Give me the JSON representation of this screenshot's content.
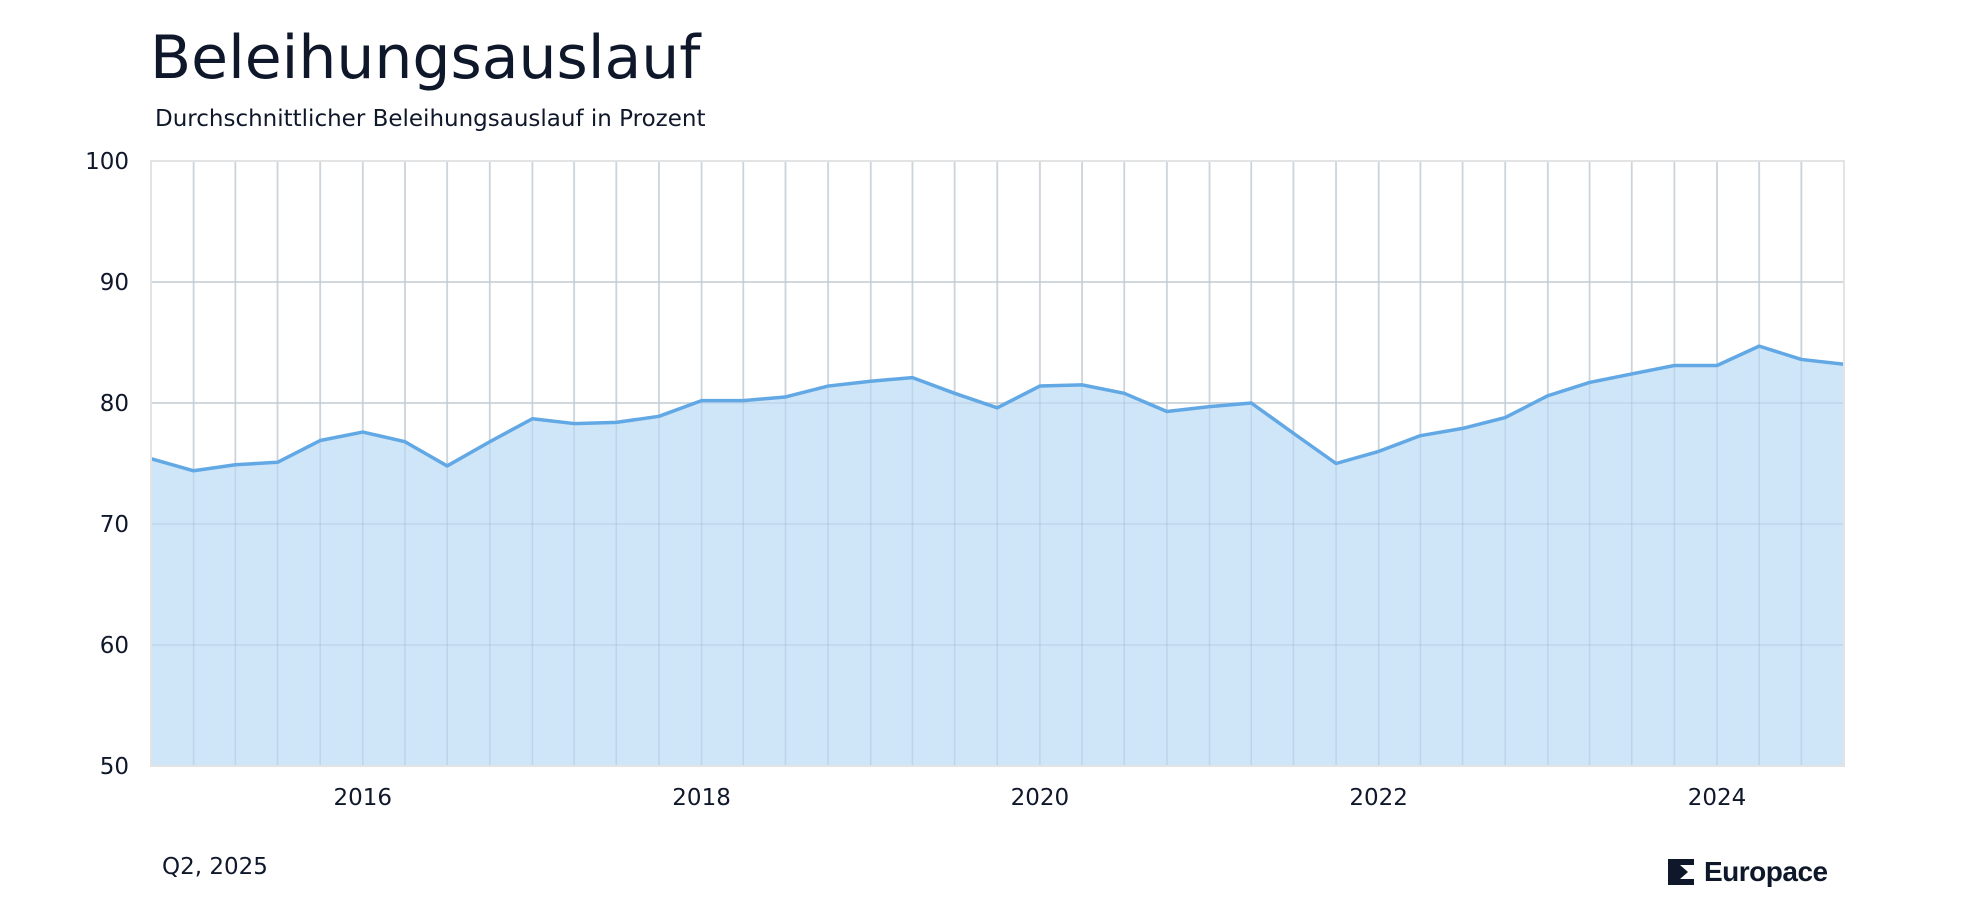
{
  "header": {
    "title": "Beleihungsauslauf",
    "subtitle": "Durchschnittlicher Beleihungsauslauf in Prozent"
  },
  "footer": {
    "date_label": "Q2, 2025",
    "brand": "Europace"
  },
  "colors": {
    "line": "#62a8e5",
    "fill": "#cfe5f8",
    "grid": "#e3e3e3",
    "text": "#0f172a"
  },
  "chart_data": {
    "type": "area",
    "title": "Beleihungsauslauf",
    "subtitle": "Durchschnittlicher Beleihungsauslauf in Prozent",
    "xlabel": "",
    "ylabel": "",
    "ylim": [
      50,
      100
    ],
    "xlim": [
      "2014-10-01",
      "2024-10-01"
    ],
    "y_ticks": [
      50,
      60,
      70,
      80,
      90,
      100
    ],
    "x_ticks": [
      {
        "label": "2016",
        "date": "2016-01-01"
      },
      {
        "label": "2018",
        "date": "2018-01-01"
      },
      {
        "label": "2020",
        "date": "2020-01-01"
      },
      {
        "label": "2022",
        "date": "2022-01-01"
      },
      {
        "label": "2024",
        "date": "2024-01-01"
      }
    ],
    "grid": true,
    "series": [
      {
        "x": [
          "2014-10-01",
          "2015-01-01",
          "2015-04-01",
          "2015-07-01",
          "2015-10-01",
          "2016-01-01",
          "2016-04-01",
          "2016-07-01",
          "2016-10-01",
          "2017-01-01",
          "2017-04-01",
          "2017-07-01",
          "2017-10-01",
          "2018-01-01",
          "2018-04-01",
          "2018-07-01",
          "2018-10-01",
          "2019-01-01",
          "2019-04-01",
          "2019-07-01",
          "2019-10-01",
          "2020-01-01",
          "2020-04-01",
          "2020-07-01",
          "2020-10-01",
          "2021-01-01",
          "2021-04-01",
          "2021-07-01",
          "2021-10-01",
          "2022-01-01",
          "2022-04-01",
          "2022-07-01",
          "2022-10-01",
          "2023-01-01",
          "2023-04-01",
          "2023-07-01",
          "2023-10-01",
          "2024-01-01",
          "2024-04-01",
          "2024-07-01",
          "2024-10-01"
        ],
        "values": [
          75.4,
          74.4,
          74.9,
          75.1,
          76.9,
          77.6,
          76.8,
          74.8,
          76.8,
          78.7,
          78.3,
          78.4,
          78.9,
          80.2,
          80.2,
          80.5,
          81.4,
          81.8,
          82.1,
          80.8,
          79.6,
          81.4,
          81.5,
          80.8,
          79.3,
          79.7,
          80.0,
          77.5,
          75.0,
          76.0,
          77.3,
          77.9,
          78.8,
          80.6,
          81.7,
          82.4,
          83.1,
          83.1,
          84.7,
          83.6,
          83.2
        ]
      }
    ]
  }
}
